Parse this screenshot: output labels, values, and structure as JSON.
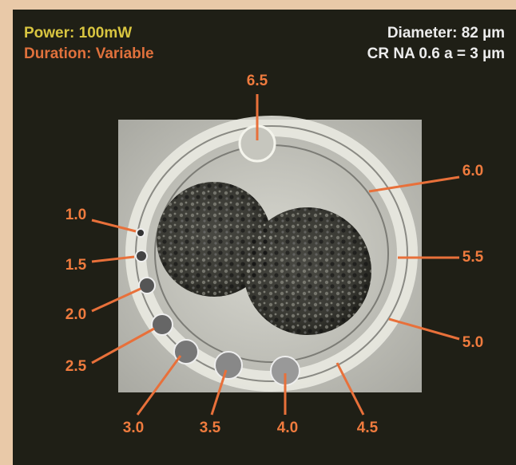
{
  "header": {
    "power": "Power: 100mW",
    "duration": "Duration: Variable",
    "diameter": "Diameter: 82 µm",
    "objective": "CR NA 0.6 a = 3 µm"
  },
  "labels": [
    "1.0",
    "1.5",
    "2.0",
    "2.5",
    "3.0",
    "3.5",
    "4.0",
    "4.5",
    "5.0",
    "5.5",
    "6.0",
    "6.5"
  ]
}
